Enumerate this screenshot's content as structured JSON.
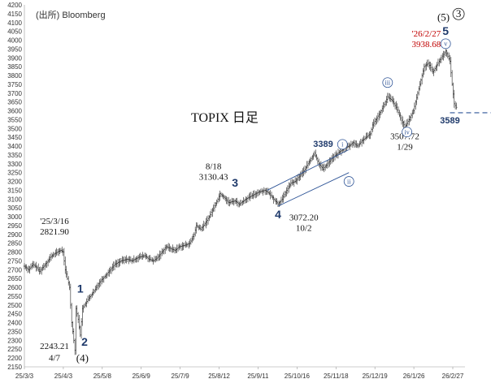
{
  "chart_data": {
    "type": "ohlc",
    "title": "TOPIX 日足",
    "source_label": "(出所)  Bloomberg",
    "ylim": [
      2150,
      4200
    ],
    "y_ticks": [
      2150,
      2200,
      2250,
      2300,
      2350,
      2400,
      2450,
      2500,
      2550,
      2600,
      2650,
      2700,
      2750,
      2800,
      2850,
      2900,
      2950,
      3000,
      3050,
      3100,
      3150,
      3200,
      3250,
      3300,
      3350,
      3400,
      3450,
      3500,
      3550,
      3600,
      3650,
      3700,
      3750,
      3800,
      3850,
      3900,
      3950,
      4000,
      4050,
      4100,
      4150,
      4200
    ],
    "x_ticks": [
      "25/3/3",
      "25/4/3",
      "25/5/8",
      "25/6/9",
      "25/7/9",
      "25/8/12",
      "25/9/11",
      "25/10/16",
      "25/11/18",
      "25/12/19",
      "26/1/26",
      "26/2/27"
    ],
    "close_path": [
      [
        0,
        2720
      ],
      [
        2,
        2700
      ],
      [
        4,
        2730
      ],
      [
        6,
        2710
      ],
      [
        7,
        2690
      ],
      [
        9,
        2720
      ],
      [
        11,
        2750
      ],
      [
        12,
        2770
      ],
      [
        14,
        2790
      ],
      [
        16,
        2805
      ],
      [
        17,
        2810
      ],
      [
        18,
        2800
      ],
      [
        19,
        2700
      ],
      [
        20,
        2650
      ],
      [
        21,
        2600
      ],
      [
        22,
        2400
      ],
      [
        23,
        2300
      ],
      [
        23.5,
        2243.21
      ],
      [
        24,
        2480
      ],
      [
        25,
        2420
      ],
      [
        26,
        2330
      ],
      [
        27,
        2480
      ],
      [
        28,
        2500
      ],
      [
        30,
        2540
      ],
      [
        32,
        2570
      ],
      [
        35,
        2630
      ],
      [
        38,
        2670
      ],
      [
        40,
        2700
      ],
      [
        42,
        2730
      ],
      [
        45,
        2750
      ],
      [
        48,
        2760
      ],
      [
        50,
        2750
      ],
      [
        53,
        2770
      ],
      [
        56,
        2780
      ],
      [
        58,
        2760
      ],
      [
        60,
        2750
      ],
      [
        62,
        2770
      ],
      [
        64,
        2800
      ],
      [
        66,
        2830
      ],
      [
        68,
        2820
      ],
      [
        70,
        2810
      ],
      [
        72,
        2830
      ],
      [
        75,
        2840
      ],
      [
        77,
        2850
      ],
      [
        79,
        2900
      ],
      [
        80,
        2950
      ],
      [
        82,
        2930
      ],
      [
        84,
        2960
      ],
      [
        86,
        3000
      ],
      [
        88,
        3050
      ],
      [
        90,
        3100
      ],
      [
        91,
        3130.43
      ],
      [
        93,
        3110
      ],
      [
        95,
        3080
      ],
      [
        98,
        3090
      ],
      [
        100,
        3070
      ],
      [
        103,
        3100
      ],
      [
        106,
        3120
      ],
      [
        109,
        3140
      ],
      [
        112,
        3150
      ],
      [
        114,
        3130
      ],
      [
        116,
        3100
      ],
      [
        118,
        3072.2
      ],
      [
        120,
        3100
      ],
      [
        122,
        3150
      ],
      [
        124,
        3190
      ],
      [
        126,
        3200
      ],
      [
        128,
        3230
      ],
      [
        130,
        3260
      ],
      [
        132,
        3300
      ],
      [
        134,
        3340
      ],
      [
        135,
        3360
      ],
      [
        137,
        3300
      ],
      [
        139,
        3270
      ],
      [
        141,
        3300
      ],
      [
        143,
        3330
      ],
      [
        145,
        3350
      ],
      [
        147,
        3370
      ],
      [
        149,
        3390
      ],
      [
        151,
        3400
      ],
      [
        153,
        3420
      ],
      [
        155,
        3400
      ],
      [
        157,
        3430
      ],
      [
        159,
        3450
      ],
      [
        161,
        3470
      ],
      [
        162,
        3520
      ],
      [
        164,
        3560
      ],
      [
        166,
        3600
      ],
      [
        168,
        3650
      ],
      [
        169,
        3680
      ],
      [
        171,
        3660
      ],
      [
        173,
        3620
      ],
      [
        175,
        3560
      ],
      [
        177,
        3507.72
      ],
      [
        179,
        3550
      ],
      [
        181,
        3600
      ],
      [
        183,
        3700
      ],
      [
        185,
        3800
      ],
      [
        186,
        3850
      ],
      [
        188,
        3870
      ],
      [
        190,
        3820
      ],
      [
        192,
        3860
      ],
      [
        194,
        3900
      ],
      [
        196,
        3938.68
      ],
      [
        198,
        3880
      ],
      [
        199,
        3750
      ],
      [
        200,
        3640
      ],
      [
        201,
        3620
      ]
    ],
    "channel": [
      [
        [
          113,
          3150
        ],
        [
          151,
          3380
        ]
      ],
      [
        [
          118,
          3060
        ],
        [
          151,
          3250
        ]
      ]
    ],
    "support_level": 3589,
    "annotations": [
      {
        "text": "'25/3/16",
        "x": 14,
        "y": 2960,
        "style": "ann"
      },
      {
        "text": "2821.90",
        "x": 14,
        "y": 2900,
        "style": "ann"
      },
      {
        "text": "2243.21",
        "x": 14,
        "y": 2250,
        "style": "ann"
      },
      {
        "text": "4/7",
        "x": 14,
        "y": 2185,
        "style": "ann"
      },
      {
        "text": "8/18",
        "x": 88,
        "y": 3270,
        "style": "ann"
      },
      {
        "text": "3130.43",
        "x": 88,
        "y": 3210,
        "style": "ann"
      },
      {
        "text": "3072.20",
        "x": 130,
        "y": 2980,
        "style": "ann"
      },
      {
        "text": "10/2",
        "x": 130,
        "y": 2920,
        "style": "ann"
      },
      {
        "text": "3507.72",
        "x": 177,
        "y": 3440,
        "style": "ann"
      },
      {
        "text": "1/29",
        "x": 177,
        "y": 3380,
        "style": "ann"
      },
      {
        "text": "'26/2/27",
        "x": 187,
        "y": 4020,
        "style": "ann-red"
      },
      {
        "text": "3938.68",
        "x": 187,
        "y": 3960,
        "style": "ann-red"
      }
    ],
    "wave_labels": [
      {
        "text": "1",
        "x": 26,
        "y": 2570
      },
      {
        "text": "2",
        "x": 28,
        "y": 2270
      },
      {
        "text": "3",
        "x": 98,
        "y": 3170
      },
      {
        "text": "4",
        "x": 118,
        "y": 2990
      },
      {
        "text": "5",
        "x": 196,
        "y": 4030
      }
    ],
    "circled_waves": [
      {
        "text": "i",
        "x": 148,
        "y": 3410
      },
      {
        "text": "ii",
        "x": 151,
        "y": 3200
      },
      {
        "text": "iii",
        "x": 169,
        "y": 3760
      },
      {
        "text": "iv",
        "x": 178,
        "y": 3480
      },
      {
        "text": "v",
        "x": 196,
        "y": 3980
      }
    ],
    "wave_degree_labels": [
      {
        "text": "(5)",
        "x": 195,
        "y": 4110
      },
      {
        "text": "3",
        "x": 202,
        "y": 4130
      },
      {
        "text": "(4)",
        "x": 27,
        "y": 2180
      }
    ],
    "blue_labels": [
      {
        "text": "3389",
        "x": 139,
        "y": 3395
      },
      {
        "text": "3589",
        "x": 198,
        "y": 3530
      }
    ]
  }
}
